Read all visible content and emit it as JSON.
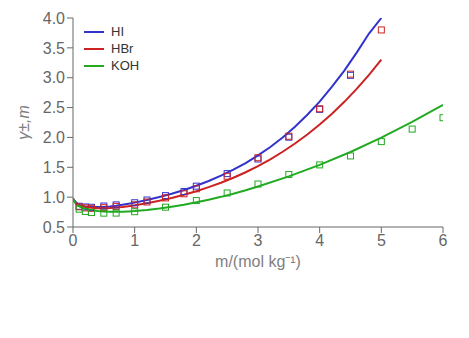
{
  "chart_data": {
    "type": "line",
    "xlabel": "m/(mol kg⁻¹)",
    "ylabel": "γ±,m",
    "xlim": [
      0,
      6
    ],
    "ylim": [
      0.5,
      4.0
    ],
    "xticks": [
      0,
      1,
      2,
      3,
      4,
      5,
      6
    ],
    "yticks": [
      0.5,
      {
        "value": 1,
        "label": "1.0"
      },
      1.5,
      {
        "value": 2,
        "label": "2.0"
      },
      2.5,
      {
        "value": 3,
        "label": "3.0"
      },
      3.5,
      {
        "value": 4,
        "label": "4.0"
      }
    ],
    "grid": false,
    "legend": "upper left",
    "series": [
      {
        "name": "HI",
        "color": "#3333cc",
        "marker": "square",
        "x": [
          0.001,
          0.02,
          0.05,
          0.1,
          0.2,
          0.3,
          0.4,
          0.5,
          0.6,
          0.7,
          0.8,
          0.9,
          1.0,
          1.2,
          1.4,
          1.6,
          1.8,
          2.0,
          2.2,
          2.4,
          2.6,
          2.8,
          3.0,
          3.2,
          3.4,
          3.6,
          3.8,
          4.0,
          4.2,
          4.4,
          4.6,
          4.8,
          5.0
        ],
        "values": [
          0.975,
          0.945,
          0.91,
          0.87,
          0.845,
          0.835,
          0.833,
          0.836,
          0.845,
          0.857,
          0.872,
          0.889,
          0.908,
          0.952,
          1.002,
          1.058,
          1.12,
          1.19,
          1.27,
          1.36,
          1.46,
          1.57,
          1.7,
          1.84,
          2.0,
          2.18,
          2.38,
          2.6,
          2.85,
          3.12,
          3.42,
          3.74,
          4.0
        ],
        "points": {
          "x": [
            0.1,
            0.2,
            0.3,
            0.5,
            0.7,
            1.0,
            1.2,
            1.5,
            1.8,
            2.0,
            2.5,
            3.0,
            3.5,
            4.0,
            4.5
          ],
          "values": [
            0.847,
            0.836,
            0.83,
            0.851,
            0.87,
            0.906,
            0.952,
            1.025,
            1.094,
            1.184,
            1.394,
            1.639,
            2.004,
            2.47,
            3.04
          ]
        }
      },
      {
        "name": "HBr",
        "color": "#cc2222",
        "marker": "square",
        "x": [
          0.001,
          0.02,
          0.05,
          0.1,
          0.2,
          0.3,
          0.4,
          0.5,
          0.6,
          0.7,
          0.8,
          0.9,
          1.0,
          1.2,
          1.4,
          1.6,
          1.8,
          2.0,
          2.2,
          2.4,
          2.6,
          2.8,
          3.0,
          3.2,
          3.4,
          3.6,
          3.8,
          4.0,
          4.2,
          4.4,
          4.6,
          4.8,
          5.0
        ],
        "values": [
          0.975,
          0.94,
          0.905,
          0.862,
          0.835,
          0.822,
          0.816,
          0.815,
          0.818,
          0.825,
          0.835,
          0.848,
          0.863,
          0.898,
          0.94,
          0.987,
          1.04,
          1.1,
          1.167,
          1.242,
          1.325,
          1.417,
          1.52,
          1.634,
          1.76,
          1.898,
          2.05,
          2.216,
          2.398,
          2.596,
          2.812,
          3.047,
          3.302
        ],
        "points": {
          "x": [
            0.1,
            0.2,
            0.3,
            0.5,
            0.7,
            1.0,
            1.2,
            1.5,
            1.8,
            2.0,
            2.5,
            3.0,
            3.5,
            4.0,
            4.5,
            5.0
          ],
          "values": [
            0.838,
            0.82,
            0.813,
            0.823,
            0.845,
            0.871,
            0.919,
            0.987,
            1.056,
            1.14,
            1.35,
            1.66,
            2.02,
            2.48,
            3.06,
            3.8
          ]
        }
      },
      {
        "name": "KOH",
        "color": "#22aa22",
        "marker": "square",
        "x": [
          0.001,
          0.02,
          0.05,
          0.1,
          0.2,
          0.3,
          0.4,
          0.5,
          0.6,
          0.7,
          0.8,
          0.9,
          1.0,
          1.2,
          1.4,
          1.6,
          1.8,
          2.0,
          2.2,
          2.4,
          2.6,
          2.8,
          3.0,
          3.5,
          4.0,
          4.5,
          5.0,
          5.5,
          6.0
        ],
        "values": [
          0.975,
          0.93,
          0.885,
          0.845,
          0.805,
          0.783,
          0.769,
          0.76,
          0.755,
          0.754,
          0.756,
          0.76,
          0.766,
          0.785,
          0.81,
          0.84,
          0.874,
          0.913,
          0.957,
          1.005,
          1.058,
          1.115,
          1.178,
          1.348,
          1.54,
          1.756,
          1.997,
          2.26,
          2.544
        ],
        "points": {
          "x": [
            0.1,
            0.2,
            0.3,
            0.5,
            0.7,
            1.0,
            1.5,
            2.0,
            2.5,
            3.0,
            3.5,
            4.0,
            4.5,
            5.0,
            5.5,
            6.0
          ],
          "values": [
            0.798,
            0.76,
            0.742,
            0.732,
            0.733,
            0.756,
            0.832,
            0.943,
            1.07,
            1.22,
            1.38,
            1.54,
            1.69,
            1.93,
            2.14,
            2.33
          ]
        }
      }
    ]
  }
}
